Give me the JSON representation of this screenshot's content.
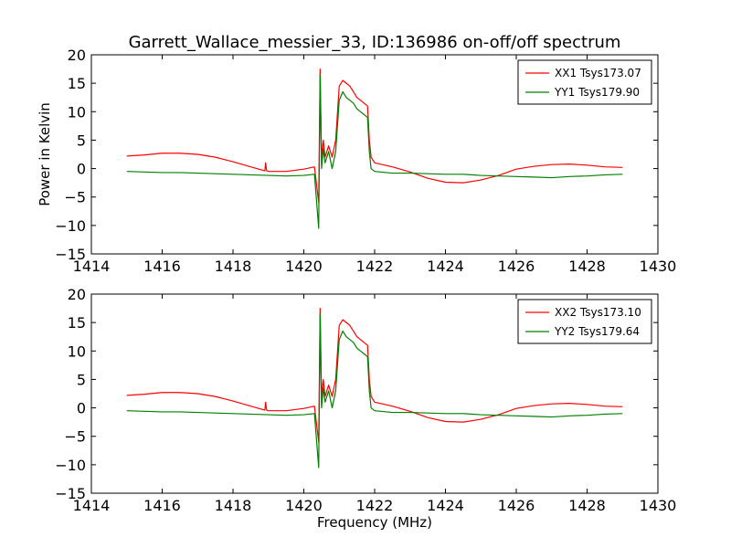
{
  "figure_title": "Garrett_Wallace_messier_33, ID:136986 on-off/off spectrum",
  "chart_data": [
    {
      "type": "line",
      "xlabel": "",
      "ylabel": "Power in Kelvin",
      "xlim": [
        1414,
        1430
      ],
      "ylim": [
        -15,
        20
      ],
      "xticks": [
        "1414",
        "1416",
        "1418",
        "1420",
        "1422",
        "1424",
        "1426",
        "1428",
        "1430"
      ],
      "yticks": [
        "20",
        "15",
        "10",
        "5",
        "0",
        "−5",
        "−10",
        "−15"
      ],
      "grid": false,
      "legend_position": "top-right",
      "series": [
        {
          "name": "XX1 Tsys173.07",
          "color": "#ff0000",
          "x": [
            1415.0,
            1415.5,
            1416.0,
            1416.5,
            1417.0,
            1417.5,
            1418.0,
            1418.5,
            1418.9,
            1418.92,
            1418.95,
            1419.0,
            1419.5,
            1420.0,
            1420.3,
            1420.42,
            1420.46,
            1420.5,
            1420.55,
            1420.6,
            1420.7,
            1420.8,
            1420.9,
            1421.0,
            1421.1,
            1421.2,
            1421.3,
            1421.4,
            1421.5,
            1421.6,
            1421.7,
            1421.8,
            1421.85,
            1421.9,
            1422.0,
            1422.5,
            1423.0,
            1423.5,
            1424.0,
            1424.5,
            1425.0,
            1425.5,
            1426.0,
            1426.5,
            1427.0,
            1427.5,
            1428.0,
            1428.5,
            1429.0
          ],
          "y": [
            2.2,
            2.4,
            2.7,
            2.7,
            2.5,
            2.0,
            1.2,
            0.3,
            -0.4,
            1.0,
            -0.4,
            -0.5,
            -0.5,
            -0.1,
            0.3,
            -6.0,
            17.5,
            2.0,
            5.0,
            2.0,
            4.0,
            2.0,
            5.0,
            14.5,
            15.5,
            15.0,
            14.5,
            13.5,
            12.5,
            12.0,
            11.5,
            11.0,
            5.0,
            2.0,
            1.0,
            0.3,
            -0.6,
            -1.7,
            -2.4,
            -2.5,
            -2.0,
            -1.2,
            -0.1,
            0.4,
            0.7,
            0.8,
            0.6,
            0.3,
            0.2
          ]
        },
        {
          "name": "YY1 Tsys179.90",
          "color": "#007f00",
          "x": [
            1415.0,
            1415.5,
            1416.0,
            1416.5,
            1417.0,
            1417.5,
            1418.0,
            1418.5,
            1419.0,
            1419.5,
            1420.0,
            1420.3,
            1420.42,
            1420.46,
            1420.5,
            1420.55,
            1420.6,
            1420.7,
            1420.8,
            1420.9,
            1421.0,
            1421.1,
            1421.2,
            1421.3,
            1421.4,
            1421.5,
            1421.6,
            1421.7,
            1421.8,
            1421.85,
            1421.9,
            1422.0,
            1422.5,
            1423.0,
            1423.5,
            1424.0,
            1424.5,
            1425.0,
            1425.5,
            1426.0,
            1426.5,
            1427.0,
            1427.5,
            1428.0,
            1428.5,
            1429.0
          ],
          "y": [
            -0.5,
            -0.6,
            -0.7,
            -0.7,
            -0.8,
            -0.9,
            -1.0,
            -1.1,
            -1.2,
            -1.3,
            -1.2,
            -1.0,
            -10.5,
            16.5,
            0.0,
            3.5,
            1.0,
            3.0,
            0.0,
            3.0,
            12.0,
            13.5,
            12.5,
            12.0,
            11.5,
            10.5,
            10.0,
            9.5,
            9.0,
            3.0,
            0.0,
            -0.5,
            -0.8,
            -0.8,
            -0.9,
            -1.0,
            -1.0,
            -1.2,
            -1.3,
            -1.4,
            -1.5,
            -1.6,
            -1.4,
            -1.3,
            -1.1,
            -1.0
          ]
        }
      ]
    },
    {
      "type": "line",
      "xlabel": "Frequency (MHz)",
      "ylabel": "",
      "xlim": [
        1414,
        1430
      ],
      "ylim": [
        -15,
        20
      ],
      "xticks": [
        "1414",
        "1416",
        "1418",
        "1420",
        "1422",
        "1424",
        "1426",
        "1428",
        "1430"
      ],
      "yticks": [
        "20",
        "15",
        "10",
        "5",
        "0",
        "−5",
        "−10",
        "−15"
      ],
      "grid": false,
      "legend_position": "top-right",
      "series": [
        {
          "name": "XX2 Tsys173.10",
          "color": "#ff0000",
          "x": [
            1415.0,
            1415.5,
            1416.0,
            1416.5,
            1417.0,
            1417.5,
            1418.0,
            1418.5,
            1418.9,
            1418.92,
            1418.95,
            1419.0,
            1419.5,
            1420.0,
            1420.3,
            1420.42,
            1420.46,
            1420.5,
            1420.55,
            1420.6,
            1420.7,
            1420.8,
            1420.9,
            1421.0,
            1421.1,
            1421.2,
            1421.3,
            1421.4,
            1421.5,
            1421.6,
            1421.7,
            1421.8,
            1421.85,
            1421.9,
            1422.0,
            1422.5,
            1423.0,
            1423.5,
            1424.0,
            1424.5,
            1425.0,
            1425.5,
            1426.0,
            1426.5,
            1427.0,
            1427.5,
            1428.0,
            1428.5,
            1429.0
          ],
          "y": [
            2.2,
            2.4,
            2.7,
            2.7,
            2.5,
            2.0,
            1.2,
            0.3,
            -0.4,
            1.0,
            -0.4,
            -0.5,
            -0.5,
            -0.1,
            0.3,
            -6.0,
            17.5,
            2.0,
            5.0,
            2.0,
            4.0,
            2.0,
            5.0,
            14.5,
            15.5,
            15.0,
            14.5,
            13.5,
            12.5,
            12.0,
            11.5,
            11.0,
            5.0,
            2.0,
            1.0,
            0.3,
            -0.6,
            -1.7,
            -2.4,
            -2.5,
            -2.0,
            -1.2,
            -0.1,
            0.4,
            0.7,
            0.8,
            0.6,
            0.3,
            0.2
          ]
        },
        {
          "name": "YY2 Tsys179.64",
          "color": "#007f00",
          "x": [
            1415.0,
            1415.5,
            1416.0,
            1416.5,
            1417.0,
            1417.5,
            1418.0,
            1418.5,
            1419.0,
            1419.5,
            1420.0,
            1420.3,
            1420.42,
            1420.46,
            1420.5,
            1420.55,
            1420.6,
            1420.7,
            1420.8,
            1420.9,
            1421.0,
            1421.1,
            1421.2,
            1421.3,
            1421.4,
            1421.5,
            1421.6,
            1421.7,
            1421.8,
            1421.85,
            1421.9,
            1422.0,
            1422.5,
            1423.0,
            1423.5,
            1424.0,
            1424.5,
            1425.0,
            1425.5,
            1426.0,
            1426.5,
            1427.0,
            1427.5,
            1428.0,
            1428.5,
            1429.0
          ],
          "y": [
            -0.5,
            -0.6,
            -0.7,
            -0.7,
            -0.8,
            -0.9,
            -1.0,
            -1.1,
            -1.2,
            -1.3,
            -1.2,
            -1.0,
            -10.5,
            16.5,
            0.0,
            3.5,
            1.0,
            3.0,
            0.0,
            3.0,
            12.0,
            13.5,
            12.5,
            12.0,
            11.5,
            10.5,
            10.0,
            9.5,
            9.0,
            3.0,
            0.0,
            -0.5,
            -0.8,
            -0.8,
            -0.9,
            -1.0,
            -1.0,
            -1.2,
            -1.3,
            -1.4,
            -1.5,
            -1.6,
            -1.4,
            -1.3,
            -1.1,
            -1.0
          ]
        }
      ]
    }
  ]
}
